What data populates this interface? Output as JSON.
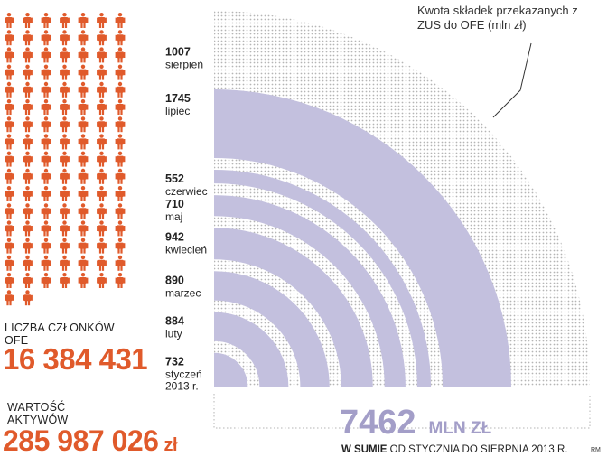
{
  "chart_data": {
    "type": "radial-bar",
    "unit": "mln zł",
    "annotation": "Kwota składek przekazanych z ZUS do OFE (mln zł)",
    "categories": [
      "styczeń 2013 r.",
      "luty",
      "marzec",
      "kwiecień",
      "maj",
      "czerwiec",
      "lipiec",
      "sierpień"
    ],
    "values": [
      732,
      884,
      890,
      942,
      710,
      552,
      1745,
      1007
    ],
    "total": {
      "value": "7462",
      "unit": "MLN ZŁ",
      "caption_strong": "W SUMIE",
      "caption_rest": " OD STYCZNIA DO SIERPNIA 2013 R."
    }
  },
  "members": {
    "label": "LICZBA CZŁONKÓW OFE",
    "value": "16 384 431",
    "icon": "person-icon"
  },
  "assets": {
    "label": "WARTOŚĆ AKTYWÓW",
    "value": "285 987 026",
    "unit": "zł"
  },
  "credit": "RM",
  "colors": {
    "accent_red": "#e05a2b",
    "band_purple": "#c3c0de",
    "total_purple": "#a39ec8",
    "dots": "#b5b5b5"
  }
}
